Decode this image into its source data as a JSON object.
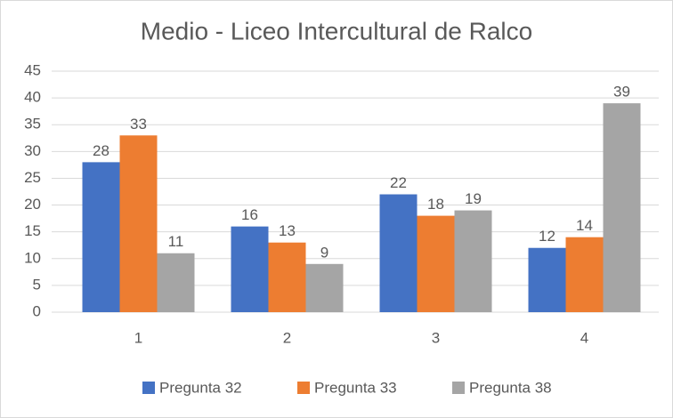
{
  "chart_data": {
    "type": "bar",
    "title": "Medio - Liceo Intercultural de Ralco",
    "categories": [
      "1",
      "2",
      "3",
      "4"
    ],
    "series": [
      {
        "name": "Pregunta 32",
        "color": "#4472c4",
        "values": [
          28,
          16,
          22,
          12
        ]
      },
      {
        "name": "Pregunta 33",
        "color": "#ed7d31",
        "values": [
          33,
          13,
          18,
          14
        ]
      },
      {
        "name": "Pregunta 38",
        "color": "#a5a5a5",
        "values": [
          11,
          9,
          19,
          39
        ]
      }
    ],
    "ylim": [
      0,
      45
    ],
    "yticks": [
      0,
      5,
      10,
      15,
      20,
      25,
      30,
      35,
      40,
      45
    ],
    "grid": true,
    "legend": "bottom"
  }
}
